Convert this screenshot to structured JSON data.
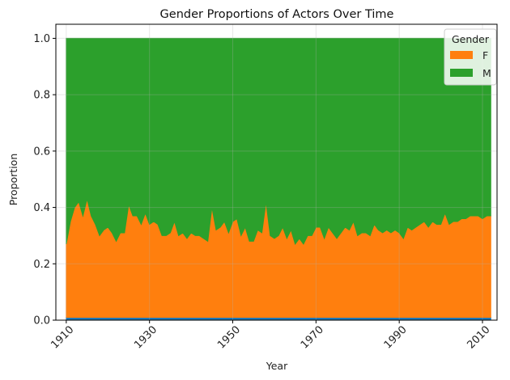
{
  "chart_data": {
    "type": "area",
    "stacked": true,
    "title": "Gender Proportions of Actors Over Time",
    "xlabel": "Year",
    "ylabel": "Proportion",
    "xlim": [
      1907.5,
      2013.5
    ],
    "ylim": [
      0.0,
      1.05
    ],
    "xticks": [
      1910,
      1930,
      1950,
      1970,
      1990,
      2010
    ],
    "yticks": [
      0.0,
      0.2,
      0.4,
      0.6,
      0.8,
      1.0
    ],
    "xtick_labels": [
      "1910",
      "1930",
      "1950",
      "1970",
      "1990",
      "2010"
    ],
    "ytick_labels": [
      "0.0",
      "0.2",
      "0.4",
      "0.6",
      "0.8",
      "1.0"
    ],
    "grid": true,
    "legend": {
      "title": "Gender",
      "placement": "top-right"
    },
    "x": [
      1910,
      1911,
      1912,
      1913,
      1914,
      1915,
      1916,
      1917,
      1918,
      1919,
      1920,
      1921,
      1922,
      1923,
      1924,
      1925,
      1926,
      1927,
      1928,
      1929,
      1930,
      1931,
      1932,
      1933,
      1934,
      1935,
      1936,
      1937,
      1938,
      1939,
      1940,
      1941,
      1942,
      1943,
      1944,
      1945,
      1946,
      1947,
      1948,
      1949,
      1950,
      1951,
      1952,
      1953,
      1954,
      1955,
      1956,
      1957,
      1958,
      1959,
      1960,
      1961,
      1962,
      1963,
      1964,
      1965,
      1966,
      1967,
      1968,
      1969,
      1970,
      1971,
      1972,
      1973,
      1974,
      1975,
      1976,
      1977,
      1978,
      1979,
      1980,
      1981,
      1982,
      1983,
      1984,
      1985,
      1986,
      1987,
      1988,
      1989,
      1990,
      1991,
      1992,
      1993,
      1994,
      1995,
      1996,
      1997,
      1998,
      1999,
      2000,
      2001,
      2002,
      2003,
      2004,
      2005,
      2006,
      2007,
      2008,
      2009,
      2010,
      2011,
      2012
    ],
    "series": [
      {
        "name": "",
        "color": "#1f77b4",
        "values": [
          0.01,
          0.01,
          0.01,
          0.01,
          0.01,
          0.01,
          0.01,
          0.01,
          0.01,
          0.01,
          0.01,
          0.01,
          0.01,
          0.01,
          0.01,
          0.01,
          0.01,
          0.01,
          0.01,
          0.01,
          0.01,
          0.01,
          0.01,
          0.01,
          0.01,
          0.01,
          0.01,
          0.01,
          0.01,
          0.01,
          0.01,
          0.01,
          0.01,
          0.01,
          0.01,
          0.01,
          0.01,
          0.01,
          0.01,
          0.01,
          0.01,
          0.01,
          0.01,
          0.01,
          0.01,
          0.01,
          0.01,
          0.01,
          0.01,
          0.01,
          0.01,
          0.01,
          0.01,
          0.01,
          0.01,
          0.01,
          0.01,
          0.01,
          0.01,
          0.01,
          0.01,
          0.01,
          0.01,
          0.01,
          0.01,
          0.01,
          0.01,
          0.01,
          0.01,
          0.01,
          0.01,
          0.01,
          0.01,
          0.01,
          0.01,
          0.01,
          0.01,
          0.01,
          0.01,
          0.01,
          0.01,
          0.01,
          0.01,
          0.01,
          0.01,
          0.01,
          0.01,
          0.01,
          0.01,
          0.01,
          0.01,
          0.01,
          0.01,
          0.01,
          0.01,
          0.01,
          0.01,
          0.01,
          0.01,
          0.01,
          0.01,
          0.01,
          0.01
        ]
      },
      {
        "name": "F",
        "color": "#ff7f0e",
        "values": [
          0.26,
          0.34,
          0.39,
          0.41,
          0.36,
          0.42,
          0.36,
          0.33,
          0.29,
          0.31,
          0.32,
          0.3,
          0.27,
          0.3,
          0.3,
          0.4,
          0.36,
          0.36,
          0.33,
          0.37,
          0.33,
          0.34,
          0.33,
          0.29,
          0.29,
          0.3,
          0.34,
          0.29,
          0.3,
          0.28,
          0.3,
          0.29,
          0.29,
          0.28,
          0.27,
          0.39,
          0.31,
          0.32,
          0.34,
          0.3,
          0.34,
          0.35,
          0.29,
          0.32,
          0.27,
          0.27,
          0.31,
          0.3,
          0.41,
          0.29,
          0.28,
          0.29,
          0.32,
          0.28,
          0.31,
          0.26,
          0.28,
          0.26,
          0.29,
          0.29,
          0.32,
          0.32,
          0.28,
          0.32,
          0.3,
          0.28,
          0.3,
          0.32,
          0.31,
          0.34,
          0.29,
          0.3,
          0.3,
          0.29,
          0.33,
          0.31,
          0.3,
          0.31,
          0.3,
          0.31,
          0.3,
          0.28,
          0.32,
          0.31,
          0.32,
          0.33,
          0.34,
          0.32,
          0.34,
          0.33,
          0.33,
          0.37,
          0.33,
          0.34,
          0.34,
          0.35,
          0.35,
          0.36,
          0.36,
          0.36,
          0.35,
          0.36,
          0.36
        ]
      },
      {
        "name": "M",
        "color": "#2ca02c",
        "values": [
          0.73,
          0.65,
          0.6,
          0.58,
          0.63,
          0.57,
          0.63,
          0.66,
          0.7,
          0.68,
          0.67,
          0.69,
          0.72,
          0.69,
          0.69,
          0.59,
          0.63,
          0.63,
          0.66,
          0.62,
          0.66,
          0.65,
          0.66,
          0.7,
          0.7,
          0.69,
          0.65,
          0.7,
          0.69,
          0.71,
          0.69,
          0.7,
          0.7,
          0.71,
          0.72,
          0.6,
          0.68,
          0.67,
          0.65,
          0.69,
          0.65,
          0.64,
          0.7,
          0.67,
          0.72,
          0.72,
          0.68,
          0.69,
          0.58,
          0.7,
          0.71,
          0.7,
          0.67,
          0.71,
          0.68,
          0.73,
          0.71,
          0.73,
          0.7,
          0.7,
          0.67,
          0.67,
          0.71,
          0.67,
          0.69,
          0.71,
          0.69,
          0.67,
          0.68,
          0.65,
          0.7,
          0.69,
          0.69,
          0.7,
          0.66,
          0.68,
          0.69,
          0.68,
          0.69,
          0.68,
          0.69,
          0.71,
          0.67,
          0.68,
          0.67,
          0.66,
          0.65,
          0.67,
          0.65,
          0.66,
          0.66,
          0.62,
          0.66,
          0.65,
          0.65,
          0.64,
          0.64,
          0.63,
          0.63,
          0.63,
          0.64,
          0.63,
          0.63
        ]
      }
    ]
  }
}
